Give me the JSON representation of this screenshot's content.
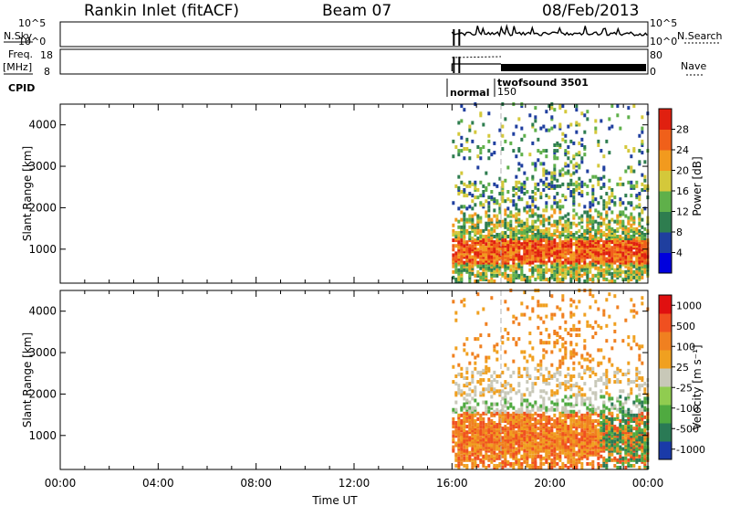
{
  "header": {
    "title": "Rankin Inlet (fitACF)",
    "beam": "Beam 07",
    "date": "08/Feb/2013"
  },
  "params": {
    "nsky_label": "N.Sky",
    "nsearch_label": "N.Search",
    "freq_label": "Freq.",
    "freq_unit": "[MHz]",
    "nave_label": "Nave",
    "cpid_label": "CPID",
    "nsky_ticks": [
      "10^5",
      "10^0"
    ],
    "freq_ticks": [
      "18",
      "8"
    ],
    "nave_ticks": [
      "80",
      "0"
    ],
    "cpid_segments": [
      {
        "name": "normal",
        "start": "16:00",
        "end": "18:00"
      },
      {
        "name": "twofsound 3501",
        "start": "18:00",
        "end": "00:00"
      }
    ],
    "cpid_id": "150"
  },
  "chart_data": [
    {
      "type": "heatmap",
      "title": "Power",
      "ylabel": "Slant Range [km]",
      "xlabel": "",
      "ylim": [
        180,
        4500
      ],
      "yticks": [
        "1000",
        "2000",
        "3000",
        "4000"
      ],
      "xticks": [
        "00:00",
        "04:00",
        "08:00",
        "12:00",
        "16:00",
        "20:00",
        "00:00"
      ],
      "data_start": "16:00",
      "data_end": "00:00",
      "colorbar_label": "Power [dB]",
      "colorbar_ticks": [
        "4",
        "8",
        "12",
        "16",
        "20",
        "24",
        "28"
      ],
      "colors": [
        "#0000dd",
        "#1f3f9f",
        "#2e7d4f",
        "#5fb04a",
        "#d4c83a",
        "#f29a1e",
        "#f0601a",
        "#e02010"
      ]
    },
    {
      "type": "heatmap",
      "title": "Velocity",
      "ylabel": "Slant Range [km]",
      "xlabel": "Time UT",
      "ylim": [
        180,
        4500
      ],
      "yticks": [
        "1000",
        "2000",
        "3000",
        "4000"
      ],
      "xticks": [
        "00:00",
        "04:00",
        "08:00",
        "12:00",
        "16:00",
        "20:00",
        "00:00"
      ],
      "data_start": "16:00",
      "data_end": "00:00",
      "colorbar_label": "Velocity [m s⁻¹]",
      "colorbar_ticks": [
        "1000",
        "500",
        "100",
        "25",
        "-25",
        "-100",
        "-500",
        "-1000"
      ],
      "colors": [
        "#1a3aa8",
        "#2a7a55",
        "#4faa40",
        "#90cc50",
        "#c8c8b8",
        "#f0a020",
        "#f08020",
        "#f05020",
        "#e01010"
      ]
    }
  ]
}
